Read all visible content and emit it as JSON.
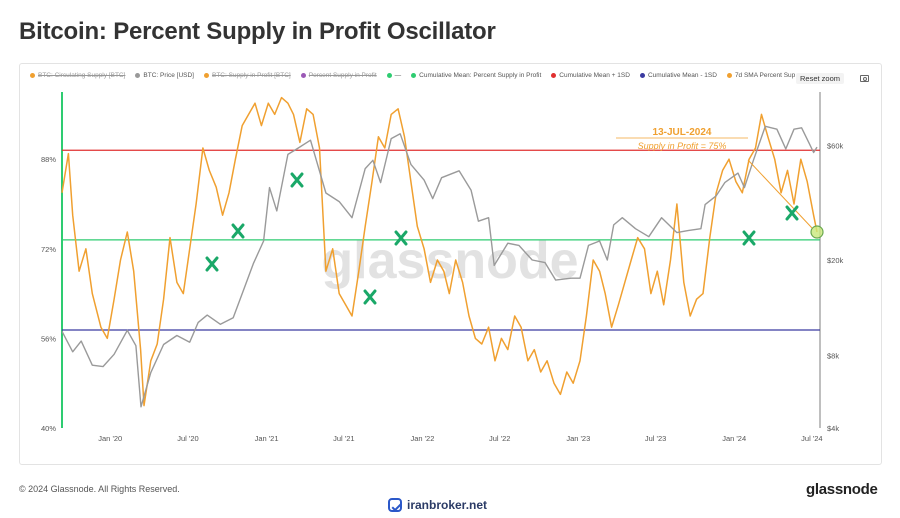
{
  "header": {
    "title": "Bitcoin: Percent Supply in Profit Oscillator"
  },
  "toolbar": {
    "reset_zoom_label": "Reset zoom",
    "camera_icon": "camera-icon"
  },
  "legend": [
    {
      "label": "BTC: Circulating Supply [BTC]",
      "color": "#f0a030",
      "disabled": true
    },
    {
      "label": "BTC: Price [USD]",
      "color": "#999999",
      "disabled": false
    },
    {
      "label": "BTC: Supply in Profit [BTC]",
      "color": "#f0a030",
      "disabled": true
    },
    {
      "label": "Percent Supply in Profit",
      "color": "#9b59b6",
      "disabled": true
    },
    {
      "label": "—",
      "color": "#2ecc71",
      "disabled": false
    },
    {
      "label": "Cumulative Mean: Percent Supply in Profit",
      "color": "#2ecc71",
      "disabled": false
    },
    {
      "label": "Cumulative Mean + 1SD",
      "color": "#e03030",
      "disabled": false
    },
    {
      "label": "Cumulative Mean - 1SD",
      "color": "#3a3aa0",
      "disabled": false
    },
    {
      "label": "7d SMA Percent Sup",
      "color": "#f0a030",
      "disabled": false
    }
  ],
  "watermark": "glassnode",
  "annotation": {
    "date": "13-JUL-2024",
    "text": "Supply in Profit = 75%",
    "color": "#f0a030"
  },
  "footer": {
    "copyright": "© 2024 Glassnode. All Rights Reserved.",
    "logo": "glassnode",
    "brand": "iranbroker.net"
  },
  "chart_data": {
    "type": "line",
    "x_tick_labels": [
      "Jan '20",
      "Jul '20",
      "Jan '21",
      "Jul '21",
      "Jan '22",
      "Jul '22",
      "Jan '23",
      "Jul '23",
      "Jan '24",
      "Jul '24"
    ],
    "x_tick_dates": [
      "2020-01-01",
      "2020-07-01",
      "2021-01-01",
      "2021-07-01",
      "2022-01-01",
      "2022-07-01",
      "2023-01-01",
      "2023-07-01",
      "2024-01-01",
      "2024-07-01"
    ],
    "x_range": [
      "2019-09-10",
      "2024-07-20"
    ],
    "y_left": {
      "tick_labels": [
        "40%",
        "56%",
        "72%",
        "88%"
      ],
      "ticks": [
        40,
        56,
        72,
        88
      ],
      "range": [
        40,
        100
      ]
    },
    "y_right": {
      "tick_labels": [
        "$4k",
        "$8k",
        "$20k",
        "$60k"
      ],
      "ticks": [
        4000,
        8000,
        20000,
        60000
      ],
      "scale": "log",
      "range": [
        4000,
        100000
      ]
    },
    "reference_lines": [
      {
        "name": "Cumulative Mean + 1SD",
        "value": 89.6,
        "color": "#e03030"
      },
      {
        "name": "Cumulative Mean: Percent Supply in Profit",
        "value": 73.6,
        "color": "#2ecc71"
      },
      {
        "name": "Cumulative Mean - 1SD",
        "value": 57.5,
        "color": "#3a3aa0"
      }
    ],
    "series": [
      {
        "name": "7d SMA Percent Sup",
        "axis": "left",
        "color": "#f0a030",
        "x": [
          "2019-09-10",
          "2019-09-25",
          "2019-10-05",
          "2019-10-20",
          "2019-11-05",
          "2019-11-20",
          "2019-12-10",
          "2019-12-25",
          "2020-01-10",
          "2020-01-25",
          "2020-02-10",
          "2020-02-25",
          "2020-03-12",
          "2020-03-20",
          "2020-04-05",
          "2020-04-20",
          "2020-05-05",
          "2020-05-20",
          "2020-06-05",
          "2020-06-20",
          "2020-07-05",
          "2020-07-20",
          "2020-08-05",
          "2020-08-20",
          "2020-09-05",
          "2020-09-20",
          "2020-10-05",
          "2020-10-20",
          "2020-11-05",
          "2020-11-20",
          "2020-12-05",
          "2020-12-20",
          "2021-01-05",
          "2021-01-20",
          "2021-02-05",
          "2021-02-20",
          "2021-03-05",
          "2021-03-20",
          "2021-04-05",
          "2021-04-20",
          "2021-05-05",
          "2021-05-20",
          "2021-06-05",
          "2021-06-20",
          "2021-07-05",
          "2021-07-20",
          "2021-08-05",
          "2021-08-20",
          "2021-09-05",
          "2021-09-20",
          "2021-10-05",
          "2021-10-20",
          "2021-11-05",
          "2021-11-20",
          "2021-12-05",
          "2021-12-20",
          "2022-01-05",
          "2022-01-20",
          "2022-02-05",
          "2022-02-20",
          "2022-03-05",
          "2022-03-20",
          "2022-04-05",
          "2022-04-20",
          "2022-05-05",
          "2022-05-20",
          "2022-06-05",
          "2022-06-20",
          "2022-07-05",
          "2022-07-20",
          "2022-08-05",
          "2022-08-20",
          "2022-09-05",
          "2022-09-20",
          "2022-10-05",
          "2022-10-20",
          "2022-11-05",
          "2022-11-20",
          "2022-12-05",
          "2022-12-20",
          "2023-01-05",
          "2023-01-20",
          "2023-02-05",
          "2023-02-20",
          "2023-03-05",
          "2023-03-20",
          "2023-04-05",
          "2023-04-20",
          "2023-05-05",
          "2023-05-20",
          "2023-06-05",
          "2023-06-20",
          "2023-07-05",
          "2023-07-20",
          "2023-08-05",
          "2023-08-20",
          "2023-09-05",
          "2023-09-20",
          "2023-10-05",
          "2023-10-20",
          "2023-11-05",
          "2023-11-20",
          "2023-12-05",
          "2023-12-20",
          "2024-01-05",
          "2024-01-20",
          "2024-02-05",
          "2024-02-20",
          "2024-03-05",
          "2024-03-20",
          "2024-04-05",
          "2024-04-20",
          "2024-05-05",
          "2024-05-20",
          "2024-06-05",
          "2024-06-20",
          "2024-07-05",
          "2024-07-13"
        ],
        "y": [
          82,
          89,
          78,
          68,
          72,
          64,
          58,
          56,
          63,
          70,
          75,
          68,
          54,
          44,
          52,
          55,
          63,
          74,
          66,
          64,
          72,
          80,
          90,
          86,
          83,
          78,
          82,
          88,
          94,
          96,
          98,
          94,
          98,
          96,
          99,
          98,
          96,
          91,
          97,
          96,
          90,
          68,
          72,
          64,
          62,
          60,
          68,
          76,
          84,
          92,
          90,
          96,
          97,
          92,
          84,
          76,
          72,
          66,
          70,
          68,
          64,
          70,
          66,
          60,
          56,
          55,
          58,
          52,
          56,
          54,
          60,
          58,
          52,
          54,
          50,
          52,
          48,
          46,
          50,
          48,
          52,
          60,
          70,
          68,
          64,
          58,
          62,
          66,
          70,
          74,
          72,
          64,
          68,
          62,
          70,
          80,
          66,
          60,
          63,
          64,
          74,
          82,
          86,
          88,
          84,
          82,
          88,
          90,
          96,
          92,
          88,
          82,
          86,
          80,
          88,
          84,
          78,
          75
        ]
      },
      {
        "name": "BTC: Price [USD]",
        "axis": "right",
        "color": "#9a9a9a",
        "x": [
          "2019-09-10",
          "2019-10-05",
          "2019-10-25",
          "2019-11-20",
          "2019-12-15",
          "2020-01-10",
          "2020-02-10",
          "2020-03-01",
          "2020-03-13",
          "2020-04-05",
          "2020-05-05",
          "2020-06-05",
          "2020-07-05",
          "2020-07-25",
          "2020-08-15",
          "2020-09-15",
          "2020-10-15",
          "2020-11-10",
          "2020-12-01",
          "2020-12-25",
          "2021-01-08",
          "2021-01-25",
          "2021-02-20",
          "2021-03-13",
          "2021-04-14",
          "2021-05-20",
          "2021-06-20",
          "2021-07-20",
          "2021-08-20",
          "2021-09-07",
          "2021-09-25",
          "2021-10-20",
          "2021-11-10",
          "2021-12-05",
          "2022-01-05",
          "2022-01-25",
          "2022-02-15",
          "2022-03-28",
          "2022-04-25",
          "2022-05-12",
          "2022-06-05",
          "2022-06-18",
          "2022-07-20",
          "2022-08-15",
          "2022-09-15",
          "2022-10-15",
          "2022-11-09",
          "2022-12-15",
          "2023-01-05",
          "2023-01-25",
          "2023-02-20",
          "2023-03-10",
          "2023-03-25",
          "2023-04-14",
          "2023-05-15",
          "2023-06-15",
          "2023-07-15",
          "2023-08-20",
          "2023-09-15",
          "2023-10-15",
          "2023-10-25",
          "2023-11-20",
          "2023-12-10",
          "2024-01-10",
          "2024-01-25",
          "2024-02-15",
          "2024-03-14",
          "2024-04-10",
          "2024-05-01",
          "2024-05-20",
          "2024-06-07",
          "2024-06-25",
          "2024-07-05",
          "2024-07-13"
        ],
        "y": [
          10100,
          8300,
          9200,
          7300,
          7200,
          8100,
          10200,
          8800,
          4900,
          6800,
          8900,
          9700,
          9100,
          11000,
          11800,
          10800,
          11500,
          15300,
          19300,
          24000,
          40000,
          32000,
          55000,
          58000,
          63000,
          38000,
          35000,
          30000,
          48000,
          52000,
          42000,
          64000,
          67000,
          50000,
          43000,
          36000,
          44000,
          47000,
          39000,
          29000,
          30000,
          19000,
          23500,
          23000,
          20000,
          19500,
          16500,
          16800,
          16800,
          23000,
          24000,
          20000,
          28000,
          30000,
          27000,
          25000,
          30000,
          26000,
          26500,
          27000,
          34000,
          37000,
          42000,
          46000,
          40000,
          52000,
          72000,
          70000,
          58000,
          70000,
          71000,
          61000,
          56000,
          59000
        ]
      }
    ]
  }
}
